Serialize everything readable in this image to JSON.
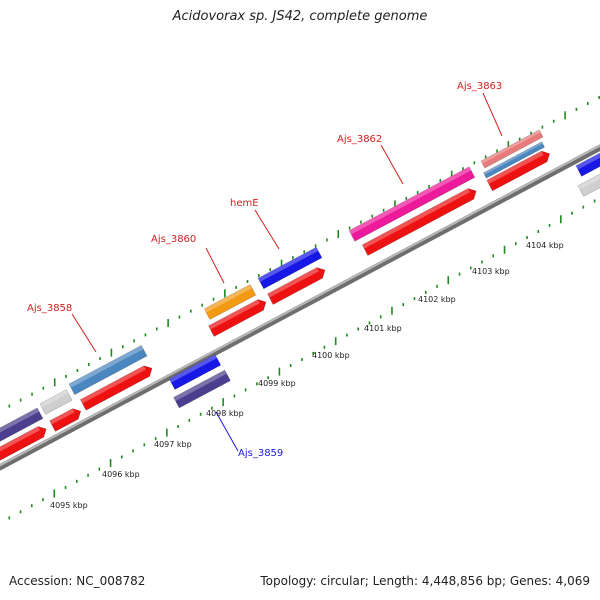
{
  "title": "Acidovorax sp. JS42, complete genome",
  "footer": {
    "accession": "Accession: NC_008782",
    "summary": "Topology: circular; Length: 4,448,856 bp; Genes: 4,069"
  },
  "colors": {
    "backbone": "#8c8c8c",
    "tick": "#1f8a1f",
    "label_forward": "#d42020",
    "label_reverse": "#1a1ad6",
    "cds": "#ee1111"
  },
  "scale": {
    "unit": "kbp",
    "labels": [
      "4095 kbp",
      "4096 kbp",
      "4097 kbp",
      "4098 kbp",
      "4099 kbp",
      "4100 kbp",
      "4101 kbp",
      "4102 kbp",
      "4103 kbp",
      "4104 kbp"
    ]
  },
  "gene_labels": [
    {
      "text": "Ajs_3858",
      "strand": "forward"
    },
    {
      "text": "Ajs_3860",
      "strand": "forward"
    },
    {
      "text": "hemE",
      "strand": "forward"
    },
    {
      "text": "Ajs_3862",
      "strand": "forward"
    },
    {
      "text": "Ajs_3863",
      "strand": "forward"
    },
    {
      "text": "Ajs_3859",
      "strand": "reverse"
    }
  ]
}
